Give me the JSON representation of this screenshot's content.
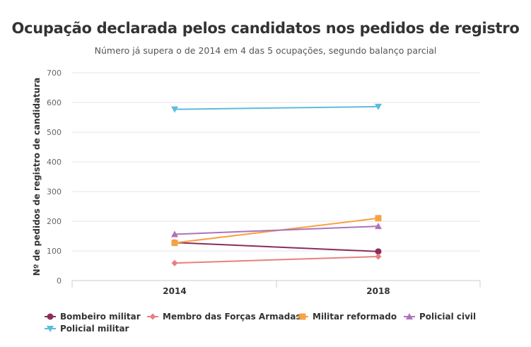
{
  "chart_data": {
    "type": "line",
    "title": "Ocupação declarada pelos candidatos nos pedidos de registro",
    "subtitle": "Número já supera o de 2014 em 4 das 5 ocupações, segundo balanço parcial",
    "ylabel": "Nº de pedidos de registro de candidatura",
    "xlabel": "",
    "categories": [
      "2014",
      "2018"
    ],
    "ylim": [
      0,
      700
    ],
    "yticks": [
      0,
      100,
      200,
      300,
      400,
      500,
      600,
      700
    ],
    "grid": true,
    "legend_position": "bottom",
    "series": [
      {
        "name": "Bombeiro militar",
        "values": [
          128,
          98
        ],
        "color": "#8b2e5a",
        "marker": "circle"
      },
      {
        "name": "Membro das Forças Armadas",
        "values": [
          59,
          81
        ],
        "color": "#e8807f",
        "marker": "diamond"
      },
      {
        "name": "Militar reformado",
        "values": [
          127,
          210
        ],
        "color": "#f5a346",
        "marker": "square"
      },
      {
        "name": "Policial civil",
        "values": [
          156,
          183
        ],
        "color": "#ad72bd",
        "marker": "triangle-up"
      },
      {
        "name": "Policial militar",
        "values": [
          577,
          586
        ],
        "color": "#5fbcdb",
        "marker": "triangle-down"
      }
    ]
  }
}
